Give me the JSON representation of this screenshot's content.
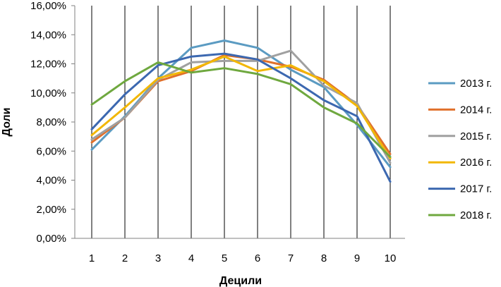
{
  "chart_data": {
    "type": "line",
    "xlabel": "Децили",
    "ylabel": "Доли",
    "x": [
      1,
      2,
      3,
      4,
      5,
      6,
      7,
      8,
      9,
      10
    ],
    "x_tick_labels": [
      "1",
      "2",
      "3",
      "4",
      "5",
      "6",
      "7",
      "8",
      "9",
      "10"
    ],
    "ylim": [
      0,
      16
    ],
    "y_ticks": [
      0,
      2,
      4,
      6,
      8,
      10,
      12,
      14,
      16
    ],
    "y_tick_labels": [
      "0,00%",
      "2,00%",
      "4,00%",
      "6,00%",
      "8,00%",
      "10,00%",
      "12,00%",
      "14,00%",
      "16,00%"
    ],
    "vertical_grid": true,
    "horizontal_grid": false,
    "legend_position": "right",
    "series": [
      {
        "name": "2013 г.",
        "color": "#5B9BC2",
        "values": [
          6.1,
          8.4,
          11.0,
          13.1,
          13.6,
          13.1,
          11.6,
          10.4,
          7.8,
          4.9
        ]
      },
      {
        "name": "2014 г.",
        "color": "#E0702B",
        "values": [
          6.6,
          8.3,
          10.8,
          11.5,
          12.6,
          12.3,
          11.8,
          10.9,
          9.2,
          5.8
        ]
      },
      {
        "name": "2015 г.",
        "color": "#A0A0A0",
        "values": [
          6.8,
          8.3,
          10.9,
          12.1,
          12.2,
          12.2,
          12.9,
          10.5,
          9.3,
          5.2
        ]
      },
      {
        "name": "2016 г.",
        "color": "#F2B705",
        "values": [
          7.1,
          9.0,
          11.0,
          11.6,
          12.5,
          11.5,
          11.9,
          10.8,
          9.1,
          5.5
        ]
      },
      {
        "name": "2017 г.",
        "color": "#3C68B0",
        "values": [
          7.5,
          9.9,
          11.9,
          12.5,
          12.7,
          12.3,
          11.0,
          9.5,
          8.4,
          3.9
        ]
      },
      {
        "name": "2018 г.",
        "color": "#6FA83F",
        "values": [
          9.2,
          10.8,
          12.1,
          11.4,
          11.7,
          11.3,
          10.6,
          9.0,
          7.9,
          5.6
        ]
      }
    ]
  }
}
